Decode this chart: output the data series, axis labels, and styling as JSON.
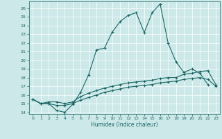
{
  "title": "",
  "xlabel": "Humidex (Indice chaleur)",
  "xlim": [
    -0.5,
    23.5
  ],
  "ylim": [
    13.8,
    26.8
  ],
  "xticks": [
    0,
    1,
    2,
    3,
    4,
    5,
    6,
    7,
    8,
    9,
    10,
    11,
    12,
    13,
    14,
    15,
    16,
    17,
    18,
    19,
    20,
    21,
    22,
    23
  ],
  "yticks": [
    14,
    15,
    16,
    17,
    18,
    19,
    20,
    21,
    22,
    23,
    24,
    25,
    26
  ],
  "bg_color": "#cce8e8",
  "line_color": "#1a6666",
  "grid_color": "#ffffff",
  "lines": [
    {
      "x": [
        0,
        1,
        2,
        3,
        4,
        5,
        6,
        7,
        8,
        9,
        10,
        11,
        12,
        13,
        14,
        15,
        16,
        17,
        18,
        19,
        20,
        21,
        22
      ],
      "y": [
        15.5,
        15.0,
        15.0,
        14.2,
        14.0,
        14.9,
        16.3,
        18.3,
        21.2,
        21.4,
        23.3,
        24.5,
        25.2,
        25.5,
        23.2,
        25.5,
        26.5,
        22.0,
        19.8,
        18.6,
        19.0,
        18.5,
        17.2
      ]
    },
    {
      "x": [
        0,
        1,
        2,
        3,
        4,
        5,
        6,
        7,
        8,
        9,
        10,
        11,
        12,
        13,
        14,
        15,
        16,
        17,
        18,
        19,
        20,
        21,
        22,
        23
      ],
      "y": [
        15.5,
        15.0,
        15.2,
        15.2,
        15.0,
        15.2,
        15.8,
        16.2,
        16.5,
        16.8,
        17.0,
        17.2,
        17.4,
        17.5,
        17.6,
        17.7,
        17.9,
        18.0,
        18.0,
        18.4,
        18.5,
        18.7,
        18.8,
        17.2
      ]
    },
    {
      "x": [
        0,
        1,
        2,
        3,
        4,
        5,
        6,
        7,
        8,
        9,
        10,
        11,
        12,
        13,
        14,
        15,
        16,
        17,
        18,
        19,
        20,
        21,
        22,
        23
      ],
      "y": [
        15.5,
        15.0,
        15.0,
        14.8,
        14.8,
        15.0,
        15.4,
        15.7,
        16.0,
        16.3,
        16.5,
        16.7,
        16.9,
        17.0,
        17.1,
        17.2,
        17.4,
        17.5,
        17.6,
        17.8,
        17.9,
        18.0,
        17.8,
        17.0
      ]
    }
  ]
}
